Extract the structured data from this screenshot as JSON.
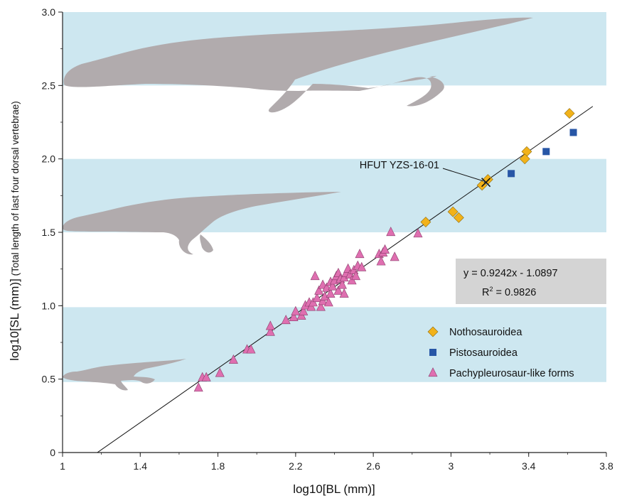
{
  "chart_data": {
    "type": "scatter",
    "xlabel": "log10[BL (mm)]",
    "ylabel_main": "log10[SL (mm)]",
    "ylabel_sub": " (Total length of last four dorsal vertebrae)",
    "xlim": [
      1,
      3.8
    ],
    "ylim": [
      0,
      3.0
    ],
    "xticks": [
      "1",
      "1.4",
      "1.8",
      "2.2",
      "2.6",
      "3",
      "3.4",
      "3.8"
    ],
    "yticks": [
      "0",
      "0.5",
      "1.0",
      "1.5",
      "2.0",
      "2.5",
      "3.0"
    ],
    "bands": [
      [
        0.48,
        0.99
      ],
      [
        1.5,
        2.0
      ],
      [
        2.5,
        3.0
      ]
    ],
    "colors": {
      "band": "#cde7f0",
      "nothosauroidea": "#f2b21a",
      "pistosauroidea": "#2756a6",
      "pachypleurosaur": "#df6fb0",
      "silhouette": "#b1abad"
    },
    "regression": {
      "equation": "y = 0.9242x - 1.0897",
      "r2_prefix": "R",
      "r2_sup": "2",
      "r2_value": " = 0.9826",
      "slope": 0.9242,
      "intercept": -1.0897
    },
    "callout": {
      "label": "HFUT YZS-16-01",
      "x": 3.18,
      "y": 1.84
    },
    "series": [
      {
        "name": "Nothosauroidea",
        "marker": "diamond",
        "points": [
          [
            3.61,
            2.31
          ],
          [
            3.39,
            2.05
          ],
          [
            3.38,
            2.0
          ],
          [
            3.19,
            1.86
          ],
          [
            3.16,
            1.82
          ],
          [
            2.87,
            1.57
          ],
          [
            3.01,
            1.64
          ],
          [
            3.04,
            1.6
          ]
        ]
      },
      {
        "name": "Pistosauroidea",
        "marker": "square",
        "points": [
          [
            3.63,
            2.18
          ],
          [
            3.49,
            2.05
          ],
          [
            3.31,
            1.9
          ]
        ]
      },
      {
        "name": "Pachypleurosaur-like forms",
        "marker": "triangle",
        "points": [
          [
            1.7,
            0.44
          ],
          [
            1.72,
            0.51
          ],
          [
            1.74,
            0.51
          ],
          [
            1.81,
            0.54
          ],
          [
            1.88,
            0.63
          ],
          [
            1.95,
            0.7
          ],
          [
            1.97,
            0.7
          ],
          [
            2.07,
            0.82
          ],
          [
            2.07,
            0.86
          ],
          [
            2.15,
            0.9
          ],
          [
            2.19,
            0.92
          ],
          [
            2.2,
            0.96
          ],
          [
            2.23,
            0.93
          ],
          [
            2.24,
            0.96
          ],
          [
            2.25,
            1.0
          ],
          [
            2.27,
            1.02
          ],
          [
            2.28,
            0.99
          ],
          [
            2.29,
            1.02
          ],
          [
            2.3,
            1.2
          ],
          [
            2.31,
            1.05
          ],
          [
            2.32,
            1.1
          ],
          [
            2.33,
            0.99
          ],
          [
            2.34,
            1.03
          ],
          [
            2.34,
            1.14
          ],
          [
            2.35,
            1.06
          ],
          [
            2.36,
            1.12
          ],
          [
            2.37,
            1.02
          ],
          [
            2.38,
            1.16
          ],
          [
            2.38,
            1.08
          ],
          [
            2.39,
            1.13
          ],
          [
            2.4,
            1.17
          ],
          [
            2.41,
            1.2
          ],
          [
            2.42,
            1.22
          ],
          [
            2.42,
            1.1
          ],
          [
            2.43,
            1.18
          ],
          [
            2.44,
            1.14
          ],
          [
            2.45,
            1.19
          ],
          [
            2.45,
            1.08
          ],
          [
            2.46,
            1.22
          ],
          [
            2.47,
            1.25
          ],
          [
            2.48,
            1.21
          ],
          [
            2.49,
            1.17
          ],
          [
            2.5,
            1.24
          ],
          [
            2.51,
            1.2
          ],
          [
            2.52,
            1.27
          ],
          [
            2.53,
            1.35
          ],
          [
            2.54,
            1.26
          ],
          [
            2.63,
            1.35
          ],
          [
            2.64,
            1.3
          ],
          [
            2.65,
            1.36
          ],
          [
            2.66,
            1.38
          ],
          [
            2.69,
            1.5
          ],
          [
            2.71,
            1.33
          ],
          [
            2.83,
            1.49
          ]
        ]
      }
    ]
  }
}
